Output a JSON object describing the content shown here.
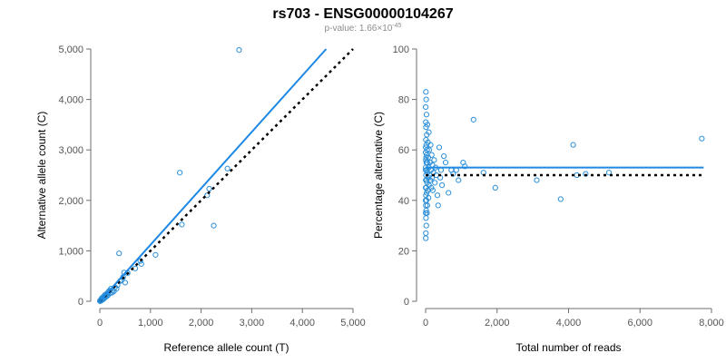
{
  "title": "rs703 - ENSG00000104267",
  "subtitle": {
    "prefix": "p-value: 1.66×10",
    "exponent": "-45"
  },
  "colors": {
    "point": "#2b8fd9",
    "fit": "#1e88e5",
    "reference": "#000000",
    "axis": "#6e6e6e"
  },
  "chart_data": [
    {
      "type": "scatter",
      "xlabel": "Reference allele count (T)",
      "ylabel": "Alternative allele count (C)",
      "xlim": [
        0,
        5000
      ],
      "ylim": [
        0,
        5000
      ],
      "xticks": [
        0,
        1000,
        2000,
        3000,
        4000,
        5000
      ],
      "yticks": [
        0,
        1000,
        2000,
        3000,
        4000,
        5000
      ],
      "xtick_labels": [
        "0",
        "1,000",
        "2,000",
        "3,000",
        "4,000",
        "5,000"
      ],
      "ytick_labels": [
        "0",
        "1,000",
        "2,000",
        "3,000",
        "4,000",
        "5,000"
      ],
      "points": [
        [
          2750,
          4980
        ],
        [
          1580,
          2550
        ],
        [
          2520,
          2630
        ],
        [
          2160,
          2230
        ],
        [
          2120,
          2100
        ],
        [
          2250,
          1500
        ],
        [
          1620,
          1520
        ],
        [
          380,
          950
        ],
        [
          1100,
          920
        ],
        [
          800,
          800
        ],
        [
          820,
          740
        ],
        [
          700,
          650
        ],
        [
          550,
          560
        ],
        [
          480,
          570
        ],
        [
          460,
          480
        ],
        [
          430,
          420
        ],
        [
          500,
          370
        ],
        [
          400,
          400
        ],
        [
          350,
          320
        ],
        [
          330,
          250
        ],
        [
          300,
          280
        ],
        [
          280,
          200
        ],
        [
          250,
          210
        ],
        [
          220,
          250
        ],
        [
          200,
          160
        ],
        [
          180,
          200
        ],
        [
          170,
          130
        ],
        [
          150,
          110
        ],
        [
          140,
          150
        ],
        [
          120,
          90
        ],
        [
          110,
          120
        ],
        [
          100,
          80
        ],
        [
          90,
          60
        ],
        [
          80,
          100
        ],
        [
          70,
          50
        ],
        [
          60,
          70
        ],
        [
          50,
          40
        ],
        [
          45,
          55
        ],
        [
          40,
          30
        ],
        [
          35,
          45
        ],
        [
          30,
          20
        ],
        [
          28,
          35
        ],
        [
          25,
          15
        ],
        [
          22,
          28
        ],
        [
          20,
          10
        ],
        [
          18,
          22
        ],
        [
          15,
          12
        ],
        [
          12,
          18
        ],
        [
          10,
          8
        ],
        [
          8,
          12
        ],
        [
          6,
          5
        ],
        [
          5,
          9
        ],
        [
          4,
          3
        ],
        [
          3,
          6
        ],
        [
          65,
          85
        ],
        [
          75,
          65
        ],
        [
          95,
          110
        ],
        [
          130,
          140
        ],
        [
          160,
          175
        ],
        [
          190,
          210
        ],
        [
          55,
          30
        ],
        [
          85,
          75
        ],
        [
          105,
          130
        ],
        [
          240,
          170
        ],
        [
          42,
          65
        ],
        [
          32,
          50
        ]
      ],
      "fit_line": {
        "x": [
          0,
          4470
        ],
        "y": [
          0,
          5000
        ]
      },
      "reference_line": {
        "x": [
          0,
          5000
        ],
        "y": [
          0,
          5000
        ]
      }
    },
    {
      "type": "scatter",
      "xlabel": "Total number of reads",
      "ylabel": "Percentage alternative (C)",
      "xlim": [
        0,
        8000
      ],
      "ylim": [
        0,
        100
      ],
      "xticks": [
        0,
        2000,
        4000,
        6000,
        8000
      ],
      "yticks": [
        0,
        20,
        40,
        60,
        80,
        100
      ],
      "xtick_labels": [
        "0",
        "2,000",
        "4,000",
        "6,000",
        "8,000"
      ],
      "ytick_labels": [
        "0",
        "20",
        "40",
        "60",
        "80",
        "100"
      ],
      "points": [
        [
          7730,
          64.5
        ],
        [
          4130,
          62
        ],
        [
          5130,
          51
        ],
        [
          4480,
          50.5
        ],
        [
          4230,
          50
        ],
        [
          3780,
          40.5
        ],
        [
          3110,
          48
        ],
        [
          1950,
          45
        ],
        [
          1620,
          51
        ],
        [
          1340,
          72
        ],
        [
          1100,
          53.5
        ],
        [
          1050,
          55
        ],
        [
          920,
          48
        ],
        [
          860,
          52
        ],
        [
          770,
          50.5
        ],
        [
          720,
          52
        ],
        [
          640,
          43
        ],
        [
          560,
          55
        ],
        [
          510,
          57.5
        ],
        [
          460,
          46
        ],
        [
          430,
          52
        ],
        [
          410,
          49
        ],
        [
          380,
          61
        ],
        [
          350,
          38
        ],
        [
          330,
          42
        ],
        [
          300,
          50
        ],
        [
          280,
          53
        ],
        [
          260,
          47
        ],
        [
          240,
          56
        ],
        [
          220,
          51
        ],
        [
          200,
          44
        ],
        [
          190,
          54
        ],
        [
          180,
          49
        ],
        [
          170,
          58
        ],
        [
          160,
          45
        ],
        [
          150,
          52
        ],
        [
          140,
          62
        ],
        [
          130,
          48
        ],
        [
          120,
          55
        ],
        [
          110,
          50
        ],
        [
          100,
          60
        ],
        [
          95,
          46
        ],
        [
          90,
          67
        ],
        [
          85,
          53
        ],
        [
          80,
          41
        ],
        [
          75,
          57
        ],
        [
          70,
          49
        ],
        [
          65,
          63
        ],
        [
          60,
          44
        ],
        [
          55,
          51
        ],
        [
          50,
          70
        ],
        [
          48,
          38
        ],
        [
          45,
          55
        ],
        [
          42,
          47
        ],
        [
          40,
          60
        ],
        [
          38,
          35
        ],
        [
          35,
          52
        ],
        [
          32,
          66
        ],
        [
          30,
          43
        ],
        [
          28,
          58
        ],
        [
          25,
          48
        ],
        [
          24,
          74
        ],
        [
          22,
          40
        ],
        [
          20,
          55
        ],
        [
          19,
          30
        ],
        [
          18,
          62
        ],
        [
          16,
          45
        ],
        [
          15,
          80
        ],
        [
          14,
          36
        ],
        [
          13,
          57
        ],
        [
          12,
          50
        ],
        [
          11,
          69
        ],
        [
          10,
          33
        ],
        [
          9,
          64
        ],
        [
          8,
          42
        ],
        [
          8,
          83
        ],
        [
          7,
          27
        ],
        [
          7,
          56
        ],
        [
          6,
          38
        ],
        [
          6,
          71
        ],
        [
          5,
          25
        ],
        [
          5,
          48
        ],
        [
          4,
          61
        ],
        [
          4,
          35
        ],
        [
          3,
          52
        ],
        [
          3,
          77
        ],
        [
          2,
          45
        ],
        [
          2,
          59
        ],
        [
          1,
          40
        ],
        [
          1,
          53
        ]
      ],
      "fit_line": {
        "x": [
          0,
          7780
        ],
        "y": [
          53,
          53
        ]
      },
      "reference_line": {
        "x": [
          0,
          7780
        ],
        "y": [
          50,
          50
        ]
      }
    }
  ]
}
